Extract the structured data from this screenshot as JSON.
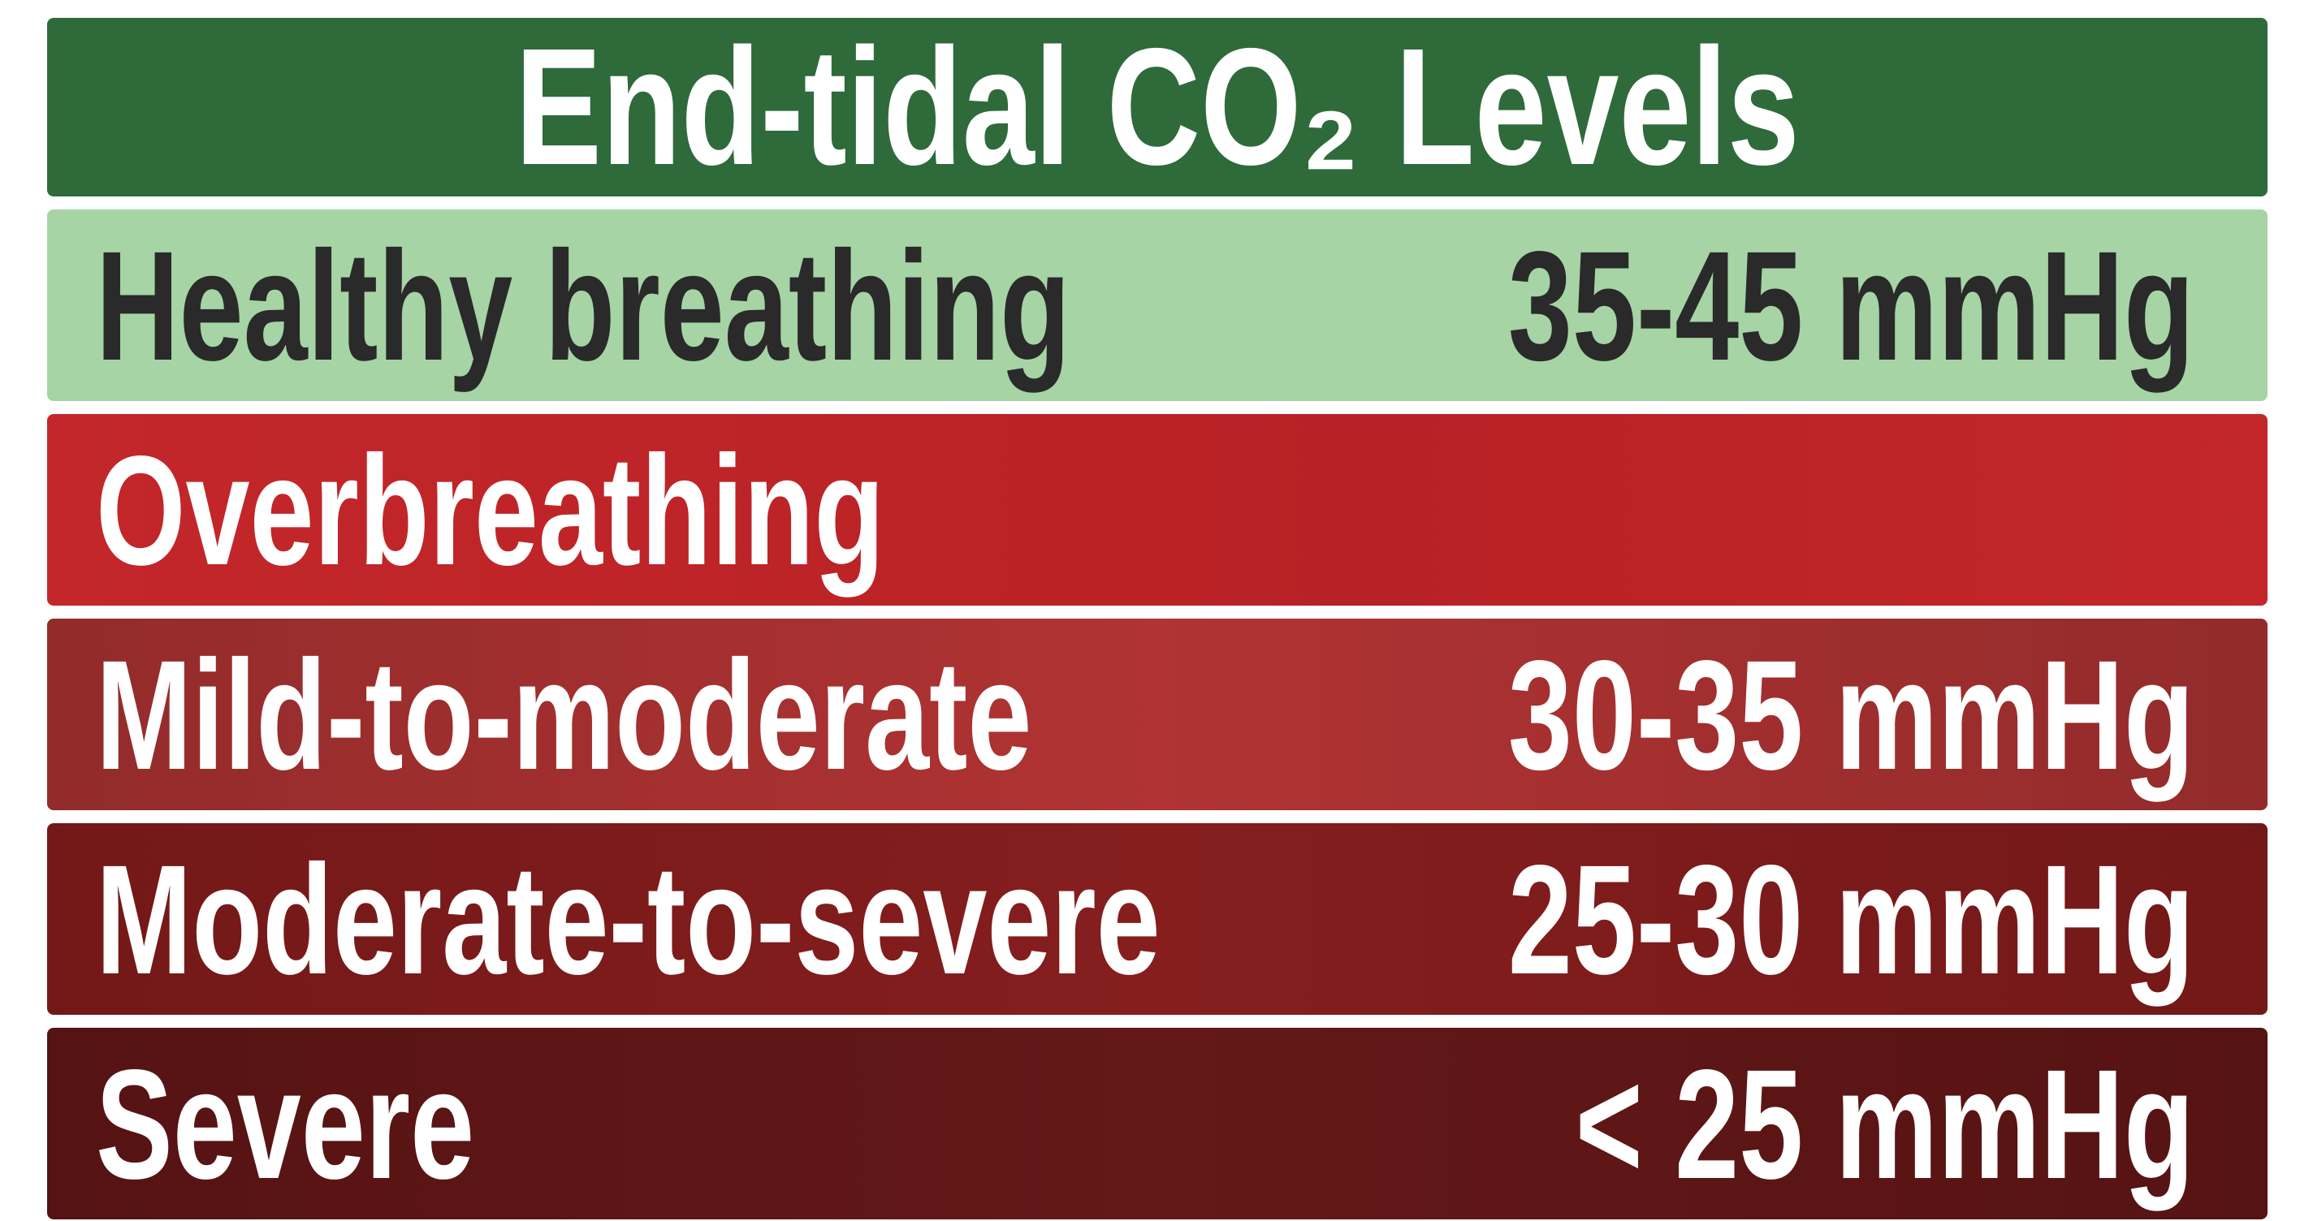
{
  "title": "End-tidal CO₂ Levels",
  "rows": [
    {
      "label": "Healthy breathing",
      "value": "35-45 mmHg"
    },
    {
      "label": "Overbreathing"
    },
    {
      "label": "Mild-to-moderate",
      "value": "30-35 mmHg"
    },
    {
      "label": "Moderate-to-severe",
      "value": "25-30 mmHg"
    },
    {
      "label": "Severe",
      "value": "< 25 mmHg"
    }
  ]
}
